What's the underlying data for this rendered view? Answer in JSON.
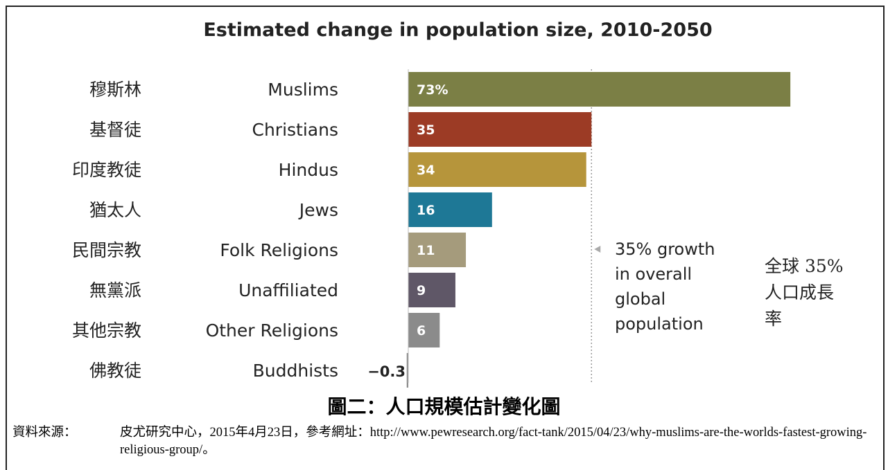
{
  "chart_data": {
    "type": "bar",
    "orientation": "horizontal",
    "title": "Estimated change in population size, 2010-2050",
    "categories": [
      "Muslims",
      "Christians",
      "Hindus",
      "Jews",
      "Folk Religions",
      "Unaffiliated",
      "Other Religions",
      "Buddhists"
    ],
    "categories_zh": [
      "穆斯林",
      "基督徒",
      "印度教徒",
      "猶太人",
      "民間宗教",
      "無黨派",
      "其他宗教",
      "佛教徒"
    ],
    "values": [
      73,
      35,
      34,
      16,
      11,
      9,
      6,
      -0.3
    ],
    "value_labels": [
      "73%",
      "35",
      "34",
      "16",
      "11",
      "9",
      "6",
      "−0.3"
    ],
    "colors": [
      "#7b7f45",
      "#9c3b25",
      "#b6953b",
      "#1e7896",
      "#a59b7c",
      "#5f5767",
      "#8b8b8b",
      "#8b8b8b"
    ],
    "reference_line": {
      "value": 35,
      "label_lines": [
        "35% growth",
        "in overall",
        "global",
        "population"
      ],
      "label_zh_lines": [
        "全球 35%",
        "人口成長",
        "率"
      ]
    }
  },
  "caption": "圖二：人口規模估計變化圖",
  "source": {
    "label": "資料來源：",
    "text": "皮尤研究中心，2015年4月23日，參考網址：http://www.pewresearch.org/fact-tank/2015/04/23/why-muslims-are-the-worlds-fastest-growing-religious-group/。"
  }
}
